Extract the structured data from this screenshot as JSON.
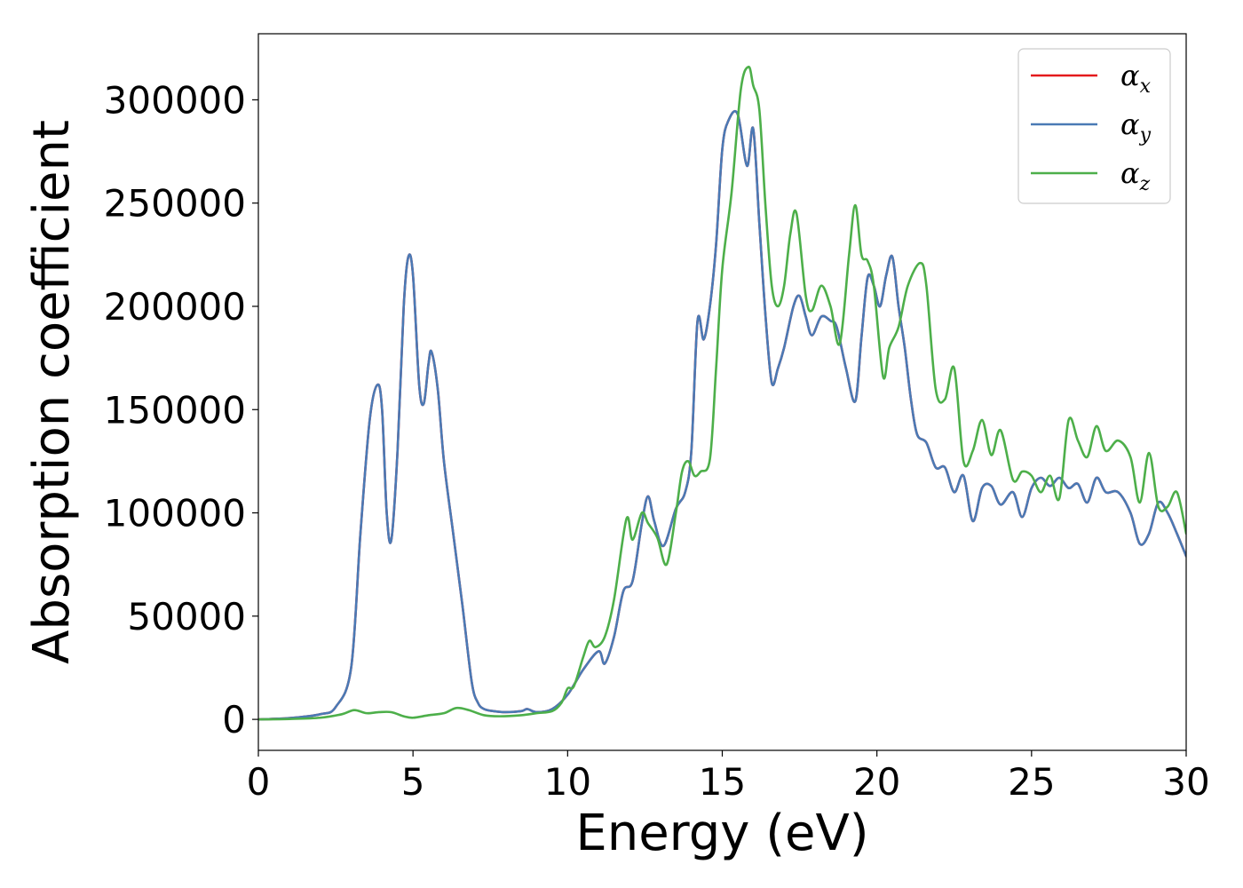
{
  "chart_data": {
    "type": "line",
    "title": "",
    "xlabel": "Energy (eV)",
    "ylabel": "Absorption coefficient",
    "xlim": [
      0,
      30
    ],
    "ylim": [
      -15000,
      332000
    ],
    "xticks": [
      0,
      5,
      10,
      15,
      20,
      25,
      30
    ],
    "xtick_labels": [
      "0",
      "5",
      "10",
      "15",
      "20",
      "25",
      "30"
    ],
    "yticks": [
      0,
      50000,
      100000,
      150000,
      200000,
      250000,
      300000
    ],
    "ytick_labels": [
      "0",
      "50000",
      "100000",
      "150000",
      "200000",
      "250000",
      "300000"
    ],
    "grid": false,
    "legend": "top-right",
    "series": [
      {
        "name": "αx",
        "symbol": "α",
        "subscript": "x",
        "color": "#e41a1c",
        "x": [
          0,
          1,
          2,
          2.5,
          3,
          3.3,
          3.6,
          3.85,
          4.0,
          4.15,
          4.3,
          4.5,
          4.7,
          4.85,
          5.0,
          5.2,
          5.35,
          5.5,
          5.6,
          5.8,
          6.0,
          6.3,
          6.6,
          6.9,
          7.1,
          7.3,
          7.6,
          8,
          8.5,
          8.7,
          9,
          9.5,
          10,
          10.5,
          11,
          11.2,
          11.5,
          11.8,
          12.1,
          12.4,
          12.6,
          12.8,
          13.1,
          13.5,
          13.8,
          14.0,
          14.2,
          14.4,
          14.6,
          14.8,
          15.0,
          15.2,
          15.5,
          15.8,
          16.0,
          16.2,
          16.4,
          16.6,
          16.8,
          17.0,
          17.3,
          17.5,
          17.7,
          17.9,
          18.2,
          18.5,
          18.7,
          19.0,
          19.3,
          19.5,
          19.7,
          19.9,
          20.1,
          20.3,
          20.5,
          20.7,
          20.9,
          21.1,
          21.3,
          21.6,
          21.9,
          22.2,
          22.5,
          22.8,
          23.1,
          23.4,
          23.7,
          24.0,
          24.4,
          24.7,
          25.0,
          25.3,
          25.6,
          25.9,
          26.2,
          26.5,
          26.8,
          27.1,
          27.4,
          27.8,
          28.2,
          28.5,
          28.8,
          29.1,
          29.4,
          29.7,
          30
        ],
        "y": [
          0,
          600,
          2500,
          6000,
          25000,
          90000,
          145000,
          162000,
          150000,
          100000,
          87000,
          130000,
          200000,
          224000,
          215000,
          162000,
          153000,
          172000,
          178000,
          160000,
          125000,
          90000,
          55000,
          18000,
          8000,
          5000,
          4000,
          3500,
          4000,
          5000,
          3500,
          5000,
          12000,
          24000,
          33000,
          27000,
          40000,
          62000,
          67000,
          95000,
          108000,
          96000,
          84000,
          102000,
          110000,
          130000,
          193000,
          184000,
          200000,
          230000,
          276000,
          290000,
          293000,
          268000,
          286000,
          240000,
          195000,
          163000,
          170000,
          180000,
          200000,
          205000,
          195000,
          186000,
          195000,
          193000,
          190000,
          170000,
          154000,
          185000,
          214000,
          210000,
          200000,
          215000,
          224000,
          200000,
          180000,
          155000,
          138000,
          134000,
          122000,
          122000,
          110000,
          118000,
          96000,
          112000,
          113000,
          104000,
          110000,
          98000,
          112000,
          117000,
          113000,
          117000,
          112000,
          114000,
          105000,
          117000,
          110000,
          110000,
          100000,
          85000,
          90000,
          105000,
          100000,
          90000,
          79000
        ]
      },
      {
        "name": "αy",
        "symbol": "α",
        "subscript": "y",
        "color": "#4a7ab5",
        "x": [
          0,
          1,
          2,
          2.5,
          3,
          3.3,
          3.6,
          3.85,
          4.0,
          4.15,
          4.3,
          4.5,
          4.7,
          4.85,
          5.0,
          5.2,
          5.35,
          5.5,
          5.6,
          5.8,
          6.0,
          6.3,
          6.6,
          6.9,
          7.1,
          7.3,
          7.6,
          8,
          8.5,
          8.7,
          9,
          9.5,
          10,
          10.5,
          11,
          11.2,
          11.5,
          11.8,
          12.1,
          12.4,
          12.6,
          12.8,
          13.1,
          13.5,
          13.8,
          14.0,
          14.2,
          14.4,
          14.6,
          14.8,
          15.0,
          15.2,
          15.5,
          15.8,
          16.0,
          16.2,
          16.4,
          16.6,
          16.8,
          17.0,
          17.3,
          17.5,
          17.7,
          17.9,
          18.2,
          18.5,
          18.7,
          19.0,
          19.3,
          19.5,
          19.7,
          19.9,
          20.1,
          20.3,
          20.5,
          20.7,
          20.9,
          21.1,
          21.3,
          21.6,
          21.9,
          22.2,
          22.5,
          22.8,
          23.1,
          23.4,
          23.7,
          24.0,
          24.4,
          24.7,
          25.0,
          25.3,
          25.6,
          25.9,
          26.2,
          26.5,
          26.8,
          27.1,
          27.4,
          27.8,
          28.2,
          28.5,
          28.8,
          29.1,
          29.4,
          29.7,
          30
        ],
        "y": [
          0,
          600,
          2500,
          6000,
          25000,
          90000,
          145000,
          162000,
          150000,
          100000,
          87000,
          130000,
          200000,
          224000,
          215000,
          162000,
          153000,
          172000,
          178000,
          160000,
          125000,
          90000,
          55000,
          18000,
          8000,
          5000,
          4000,
          3500,
          4000,
          5000,
          3500,
          5000,
          12000,
          24000,
          33000,
          27000,
          40000,
          62000,
          67000,
          95000,
          108000,
          96000,
          84000,
          102000,
          110000,
          130000,
          193000,
          184000,
          200000,
          230000,
          276000,
          290000,
          293000,
          268000,
          286000,
          240000,
          195000,
          163000,
          170000,
          180000,
          200000,
          205000,
          195000,
          186000,
          195000,
          193000,
          190000,
          170000,
          154000,
          185000,
          214000,
          210000,
          200000,
          215000,
          224000,
          200000,
          180000,
          155000,
          138000,
          134000,
          122000,
          122000,
          110000,
          118000,
          96000,
          112000,
          113000,
          104000,
          110000,
          98000,
          112000,
          117000,
          113000,
          117000,
          112000,
          114000,
          105000,
          117000,
          110000,
          110000,
          100000,
          85000,
          90000,
          105000,
          100000,
          90000,
          79000
        ]
      },
      {
        "name": "αz",
        "symbol": "α",
        "subscript": "z",
        "color": "#4daf4a",
        "x": [
          0,
          1,
          2,
          2.7,
          3.1,
          3.5,
          3.9,
          4.3,
          4.7,
          5.0,
          5.5,
          6.0,
          6.4,
          6.8,
          7.3,
          7.8,
          8.5,
          9.0,
          9.5,
          9.8,
          10.0,
          10.2,
          10.5,
          10.7,
          10.9,
          11.2,
          11.5,
          11.9,
          12.1,
          12.4,
          12.6,
          12.9,
          13.2,
          13.5,
          13.7,
          13.9,
          14.1,
          14.3,
          14.6,
          14.8,
          15.0,
          15.3,
          15.6,
          15.85,
          16.0,
          16.2,
          16.4,
          16.6,
          16.8,
          17.0,
          17.2,
          17.4,
          17.7,
          17.9,
          18.2,
          18.5,
          18.8,
          19.1,
          19.3,
          19.5,
          19.7,
          19.9,
          20.2,
          20.4,
          20.7,
          21.0,
          21.4,
          21.6,
          21.9,
          22.2,
          22.5,
          22.8,
          23.1,
          23.4,
          23.7,
          24.0,
          24.4,
          24.7,
          25.0,
          25.3,
          25.6,
          25.9,
          26.2,
          26.5,
          26.8,
          27.1,
          27.4,
          27.8,
          28.2,
          28.5,
          28.8,
          29.1,
          29.4,
          29.7,
          30
        ],
        "y": [
          0,
          200,
          800,
          2500,
          4500,
          3000,
          3500,
          3500,
          1500,
          800,
          2000,
          3000,
          5500,
          4500,
          2000,
          1500,
          2000,
          3000,
          4000,
          8000,
          15000,
          16000,
          30000,
          38000,
          35000,
          40000,
          58000,
          97000,
          87000,
          100000,
          95000,
          88000,
          75000,
          100000,
          120000,
          125000,
          118000,
          120000,
          126000,
          170000,
          218000,
          255000,
          305000,
          316000,
          307000,
          295000,
          248000,
          210000,
          200000,
          210000,
          235000,
          245000,
          205000,
          198000,
          210000,
          200000,
          182000,
          225000,
          249000,
          225000,
          222000,
          210000,
          166000,
          180000,
          190000,
          210000,
          221000,
          210000,
          160000,
          155000,
          170000,
          125000,
          130000,
          145000,
          128000,
          140000,
          116000,
          120000,
          118000,
          110000,
          118000,
          107000,
          145000,
          135000,
          127000,
          142000,
          130000,
          135000,
          127000,
          105000,
          129000,
          103000,
          103000,
          110000,
          90000
        ]
      }
    ]
  }
}
